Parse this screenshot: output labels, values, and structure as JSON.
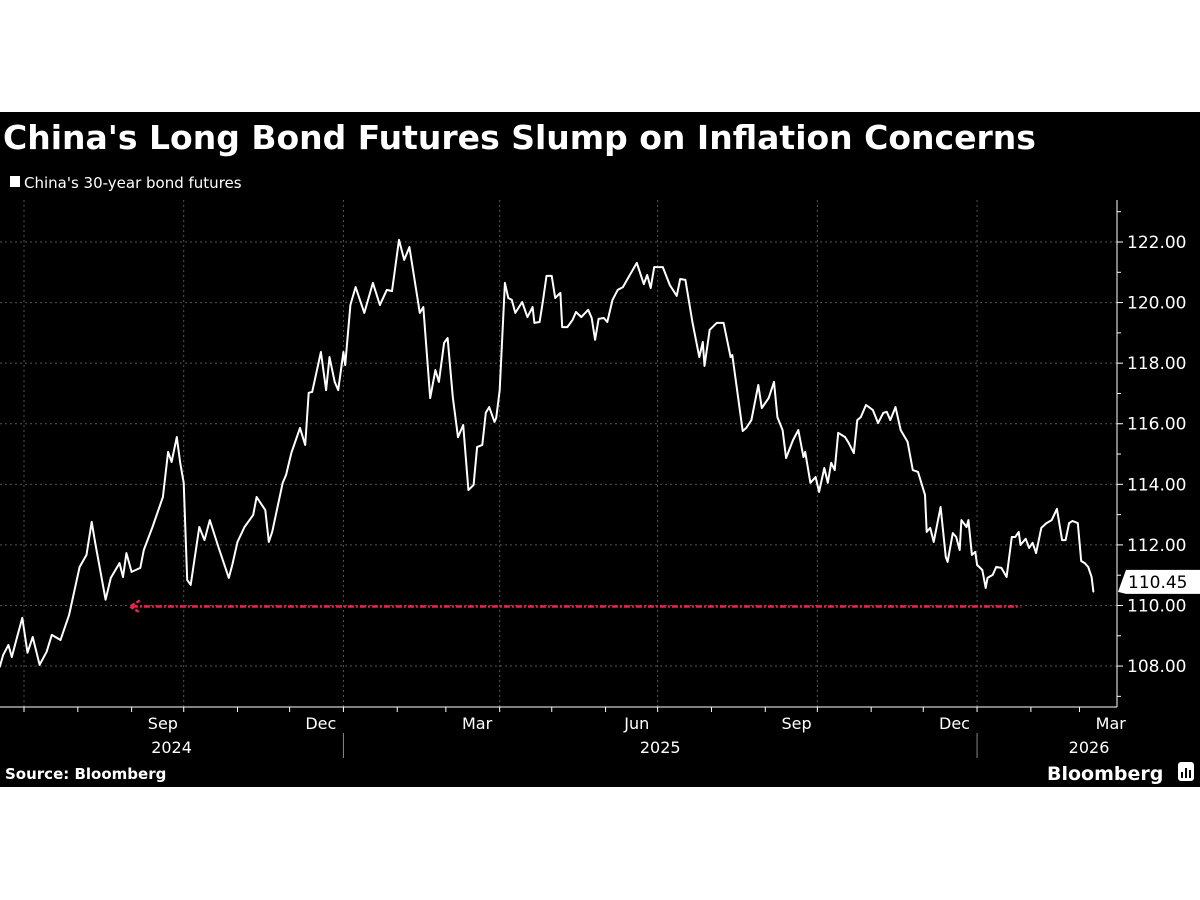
{
  "chart_data": {
    "type": "line",
    "title": "China's Long Bond Futures Slump on Inflation Concerns",
    "legend": {
      "entries": [
        "China's 30-year bond futures"
      ],
      "placement": "top-left"
    },
    "source": "Source: Bloomberg",
    "logo": "Bloomberg",
    "ylim": [
      106.65,
      123.4
    ],
    "yticks": [
      108,
      110,
      112,
      114,
      116,
      118,
      120,
      122
    ],
    "ytick_labels": [
      "108.00",
      "110.00",
      "112.00",
      "114.00",
      "116.00",
      "118.00",
      "120.00",
      "122.00"
    ],
    "y_axis_side": "right",
    "grid": true,
    "xlim": [
      "2024-06-17",
      "2026-03-12"
    ],
    "x_month_labels": [
      {
        "date": "2024-09",
        "label": "Sep"
      },
      {
        "date": "2024-12",
        "label": "Dec"
      },
      {
        "date": "2025-03",
        "label": "Mar"
      },
      {
        "date": "2025-06",
        "label": "Jun"
      },
      {
        "date": "2025-09",
        "label": "Sep"
      },
      {
        "date": "2025-12",
        "label": "Dec"
      },
      {
        "date": "2026-03",
        "label": "Mar"
      }
    ],
    "x_year_labels": [
      {
        "year": "2024",
        "label": "2024"
      },
      {
        "year": "2025",
        "label": "2025"
      },
      {
        "year": "2026",
        "label": "2026"
      }
    ],
    "last_value_label": "110.45",
    "colors": {
      "background": "#000000",
      "line": "#ffffff",
      "annotation": "#e8234a",
      "grid": "#555555"
    },
    "annotation": {
      "type": "dashed-arrow",
      "value": 110.0,
      "from": "2026-01-26",
      "to": "2024-08-31",
      "color": "#e8234a"
    },
    "series": [
      {
        "name": "China's 30-year bond futures",
        "x": [
          "2024-06-17",
          "2024-06-19",
          "2024-06-22",
          "2024-06-24",
          "2024-06-27",
          "2024-06-30",
          "2024-07-03",
          "2024-07-06",
          "2024-07-10",
          "2024-07-14",
          "2024-07-17",
          "2024-07-22",
          "2024-07-27",
          "2024-08-02",
          "2024-08-06",
          "2024-08-09",
          "2024-08-11",
          "2024-08-17",
          "2024-08-20",
          "2024-08-25",
          "2024-08-27",
          "2024-08-29",
          "2024-09-01",
          "2024-09-06",
          "2024-09-08",
          "2024-09-13",
          "2024-09-19",
          "2024-09-22",
          "2024-09-24",
          "2024-09-27",
          "2024-09-29",
          "2024-10-01",
          "2024-10-03",
          "2024-10-05",
          "2024-10-10",
          "2024-10-13",
          "2024-10-16",
          "2024-10-21",
          "2024-10-27",
          "2024-10-29",
          "2024-11-01",
          "2024-11-05",
          "2024-11-10",
          "2024-11-12",
          "2024-11-17",
          "2024-11-19",
          "2024-11-21",
          "2024-11-27",
          "2024-11-29",
          "2024-12-02",
          "2024-12-07",
          "2024-12-10",
          "2024-12-12",
          "2024-12-14",
          "2024-12-19",
          "2024-12-22",
          "2024-12-24",
          "2024-12-27",
          "2024-12-29",
          "2025-01-01",
          "2025-01-02",
          "2025-01-05",
          "2025-01-08",
          "2025-01-13",
          "2025-01-18",
          "2025-01-22",
          "2025-01-26",
          "2025-01-29",
          "2025-02-02",
          "2025-02-05",
          "2025-02-08",
          "2025-02-14",
          "2025-02-16",
          "2025-02-20",
          "2025-02-23",
          "2025-02-25",
          "2025-02-28",
          "2025-03-02",
          "2025-03-05",
          "2025-03-08",
          "2025-03-11",
          "2025-03-14",
          "2025-03-17",
          "2025-03-19",
          "2025-03-22",
          "2025-03-24",
          "2025-03-26",
          "2025-03-29",
          "2025-03-30",
          "2025-04-01",
          "2025-04-04",
          "2025-04-06",
          "2025-04-08",
          "2025-04-10",
          "2025-04-14",
          "2025-04-17",
          "2025-04-20",
          "2025-04-21",
          "2025-04-24",
          "2025-04-26",
          "2025-04-28",
          "2025-05-01",
          "2025-05-03",
          "2025-05-06",
          "2025-05-07",
          "2025-05-10",
          "2025-05-13",
          "2025-05-15",
          "2025-05-18",
          "2025-05-22",
          "2025-05-24",
          "2025-05-26",
          "2025-05-28",
          "2025-05-31",
          "2025-06-02",
          "2025-06-05",
          "2025-06-08",
          "2025-06-11",
          "2025-06-14",
          "2025-06-19",
          "2025-06-23",
          "2025-06-25",
          "2025-06-27",
          "2025-06-29",
          "2025-07-04",
          "2025-07-08",
          "2025-07-12",
          "2025-07-14",
          "2025-07-17",
          "2025-07-21",
          "2025-07-25",
          "2025-07-27",
          "2025-07-28",
          "2025-07-31",
          "2025-08-04",
          "2025-08-08",
          "2025-08-12",
          "2025-08-13",
          "2025-08-19",
          "2025-08-21",
          "2025-08-24",
          "2025-08-28",
          "2025-08-30",
          "2025-09-03",
          "2025-09-06",
          "2025-09-08",
          "2025-09-11",
          "2025-09-13",
          "2025-09-17",
          "2025-09-20",
          "2025-09-23",
          "2025-09-24",
          "2025-09-27",
          "2025-09-30",
          "2025-10-02",
          "2025-10-05",
          "2025-10-07",
          "2025-10-09",
          "2025-10-11",
          "2025-10-13",
          "2025-10-17",
          "2025-10-19",
          "2025-10-22",
          "2025-10-24",
          "2025-10-26",
          "2025-10-29",
          "2025-11-02",
          "2025-11-05",
          "2025-11-08",
          "2025-11-10",
          "2025-11-12",
          "2025-11-15",
          "2025-11-18",
          "2025-11-22",
          "2025-11-25",
          "2025-11-28",
          "2025-12-02",
          "2025-12-03",
          "2025-12-05",
          "2025-12-07",
          "2025-12-11",
          "2025-12-14",
          "2025-12-15",
          "2025-12-18",
          "2025-12-20",
          "2025-12-22",
          "2025-12-23",
          "2025-12-26",
          "2025-12-27",
          "2025-12-29",
          "2025-12-31",
          "2026-01-01",
          "2026-01-04",
          "2026-01-06",
          "2026-01-07",
          "2026-01-10",
          "2026-01-12",
          "2026-01-15",
          "2026-01-18",
          "2026-01-21",
          "2026-01-23",
          "2026-01-25",
          "2026-01-26",
          "2026-01-29",
          "2026-01-31",
          "2026-02-02",
          "2026-02-04",
          "2026-02-07",
          "2026-02-10",
          "2026-02-13",
          "2026-02-16",
          "2026-02-19",
          "2026-02-21",
          "2026-02-23",
          "2026-02-25",
          "2026-02-28",
          "2026-03-02",
          "2026-03-04",
          "2026-03-06",
          "2026-03-08",
          "2026-03-09"
        ],
        "y": [
          107.97,
          108.37,
          108.7,
          108.3,
          108.96,
          109.59,
          108.44,
          108.96,
          108.04,
          108.47,
          109.03,
          108.86,
          109.69,
          111.27,
          111.67,
          112.76,
          112.07,
          110.19,
          110.91,
          111.4,
          110.94,
          111.73,
          111.11,
          111.24,
          111.83,
          112.59,
          113.58,
          115.07,
          114.74,
          115.56,
          114.71,
          114.05,
          110.84,
          110.68,
          112.59,
          112.16,
          112.82,
          111.93,
          110.91,
          111.34,
          112.1,
          112.59,
          112.99,
          113.58,
          113.15,
          112.1,
          112.43,
          114.05,
          114.31,
          115.03,
          115.86,
          115.3,
          117.02,
          117.05,
          118.37,
          117.11,
          118.2,
          117.38,
          117.11,
          118.37,
          117.94,
          119.92,
          120.51,
          119.66,
          120.65,
          119.92,
          120.42,
          120.38,
          122.07,
          121.41,
          121.83,
          119.66,
          119.85,
          116.85,
          117.77,
          117.38,
          118.67,
          118.83,
          116.88,
          115.56,
          115.96,
          113.81,
          113.98,
          115.23,
          115.3,
          116.36,
          116.55,
          116.06,
          116.19,
          117.11,
          120.65,
          120.15,
          120.09,
          119.66,
          120.02,
          119.52,
          119.85,
          119.33,
          119.36,
          120.09,
          120.88,
          120.88,
          120.15,
          120.32,
          119.19,
          119.19,
          119.43,
          119.69,
          119.52,
          119.76,
          119.49,
          118.77,
          119.46,
          119.49,
          119.36,
          120.09,
          120.42,
          120.51,
          120.81,
          121.31,
          120.61,
          120.91,
          120.48,
          121.17,
          121.17,
          120.58,
          120.22,
          120.78,
          120.75,
          119.36,
          118.2,
          118.7,
          117.91,
          119.1,
          119.33,
          119.33,
          118.2,
          118.27,
          115.76,
          115.86,
          116.12,
          117.28,
          116.52,
          116.85,
          117.38,
          116.22,
          115.79,
          114.87,
          115.46,
          115.79,
          114.9,
          115.07,
          114.05,
          114.24,
          113.75,
          114.54,
          114.05,
          114.71,
          114.47,
          115.7,
          115.56,
          115.37,
          115.03,
          116.12,
          116.22,
          116.62,
          116.45,
          116.02,
          116.36,
          116.39,
          116.12,
          116.55,
          115.79,
          115.4,
          114.47,
          114.41,
          113.65,
          112.43,
          112.56,
          112.1,
          113.25,
          111.6,
          111.44,
          112.39,
          112.26,
          111.83,
          112.82,
          112.59,
          112.82,
          111.67,
          111.77,
          111.34,
          111.17,
          110.58,
          110.91,
          111.01,
          111.27,
          111.24,
          110.94,
          112.26,
          112.26,
          112.43,
          112.0,
          112.2,
          111.9,
          112.07,
          111.73,
          112.56,
          112.72,
          112.82,
          113.19,
          112.16,
          112.16,
          112.72,
          112.79,
          112.72,
          111.47,
          111.4,
          111.27,
          110.94,
          110.45
        ]
      }
    ]
  }
}
